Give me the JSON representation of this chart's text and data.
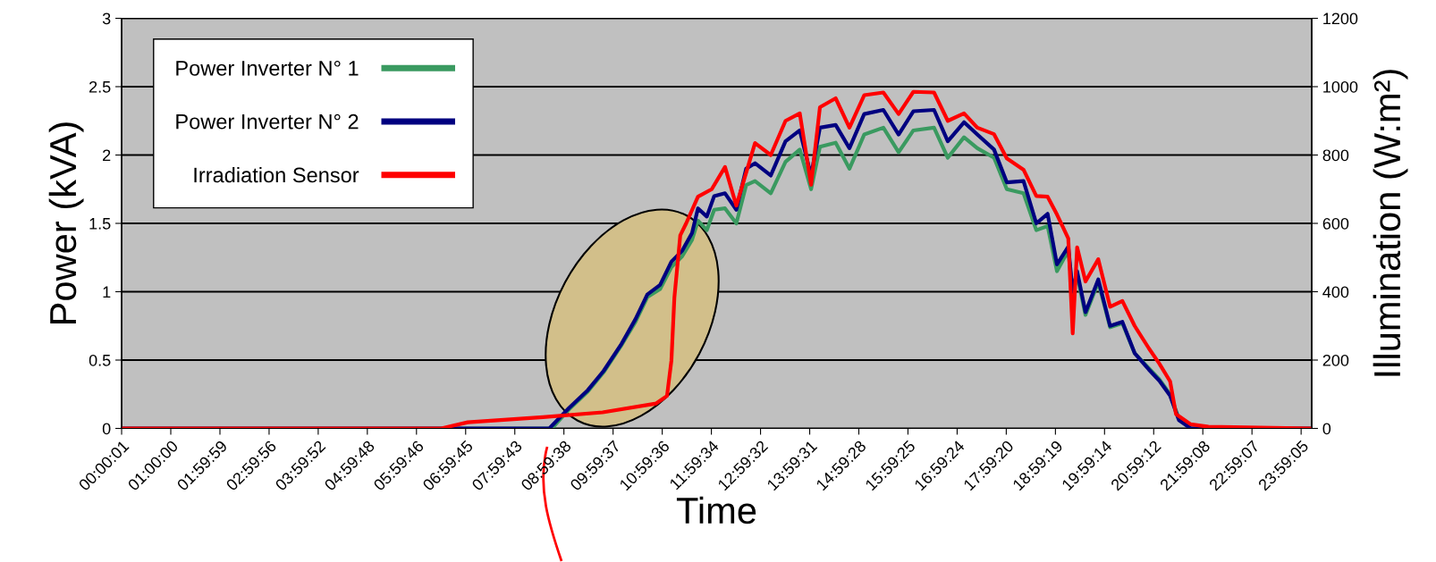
{
  "chart_data": {
    "type": "line",
    "xlabel": "Time",
    "ylabel": "Power (kVA)",
    "y2label": "Illumination (W:m²)",
    "xlim": [
      0,
      24.2
    ],
    "ylim": [
      0,
      3
    ],
    "y2lim": [
      0,
      1200
    ],
    "xticks": [
      {
        "value": 0.0003,
        "label": "00:00:01"
      },
      {
        "value": 1,
        "label": "01:00:00"
      },
      {
        "value": 1.9997,
        "label": "01:59:59"
      },
      {
        "value": 2.9989,
        "label": "02:59:56"
      },
      {
        "value": 3.9978,
        "label": "03:59:52"
      },
      {
        "value": 4.9967,
        "label": "04:59:48"
      },
      {
        "value": 5.9961,
        "label": "05:59:46"
      },
      {
        "value": 6.9958,
        "label": "06:59:45"
      },
      {
        "value": 7.9953,
        "label": "07:59:43"
      },
      {
        "value": 8.9939,
        "label": "08:59:38"
      },
      {
        "value": 9.9936,
        "label": "09:59:37"
      },
      {
        "value": 10.9933,
        "label": "10:59:36"
      },
      {
        "value": 11.9928,
        "label": "11:59:34"
      },
      {
        "value": 12.9922,
        "label": "12:59:32"
      },
      {
        "value": 13.9919,
        "label": "13:59:31"
      },
      {
        "value": 14.9911,
        "label": "14:59:28"
      },
      {
        "value": 15.9903,
        "label": "15:59:25"
      },
      {
        "value": 16.99,
        "label": "16:59:24"
      },
      {
        "value": 17.9889,
        "label": "17:59:20"
      },
      {
        "value": 18.9886,
        "label": "18:59:19"
      },
      {
        "value": 19.9872,
        "label": "19:59:14"
      },
      {
        "value": 20.9867,
        "label": "20:59:12"
      },
      {
        "value": 21.9856,
        "label": "21:59:08"
      },
      {
        "value": 22.9853,
        "label": "22:59:07"
      },
      {
        "value": 23.9847,
        "label": "23:59:05"
      }
    ],
    "yticks": [
      0,
      0.5,
      1,
      1.5,
      2,
      2.5,
      3
    ],
    "y2ticks": [
      0,
      200,
      400,
      600,
      800,
      1000,
      1200
    ],
    "grid": "y",
    "legend": "top left",
    "series": [
      {
        "name": "Power Inverter N° 1",
        "color": "#3a9a60",
        "x": [
          0,
          8.7,
          8.75,
          9.1,
          9.48,
          9.8,
          10.15,
          10.45,
          10.69,
          10.95,
          11.18,
          11.4,
          11.6,
          11.72,
          11.9,
          12.05,
          12.27,
          12.5,
          12.7,
          12.88,
          13.2,
          13.5,
          13.79,
          14.02,
          14.2,
          14.52,
          14.8,
          15.1,
          15.49,
          15.8,
          16.1,
          16.52,
          16.8,
          17.13,
          17.4,
          17.74,
          18.0,
          18.34,
          18.6,
          18.83,
          19.02,
          19.25,
          19.34,
          19.43,
          19.6,
          19.86,
          20.1,
          20.35,
          20.6,
          20.89,
          21.1,
          21.32,
          21.5,
          21.74,
          24.2
        ],
        "values": [
          0,
          0,
          0,
          0.14,
          0.27,
          0.41,
          0.6,
          0.78,
          0.96,
          1.02,
          1.18,
          1.26,
          1.38,
          1.52,
          1.45,
          1.6,
          1.61,
          1.5,
          1.78,
          1.81,
          1.72,
          1.95,
          2.04,
          1.75,
          2.06,
          2.09,
          1.9,
          2.15,
          2.2,
          2.02,
          2.18,
          2.2,
          1.98,
          2.13,
          2.05,
          1.98,
          1.75,
          1.72,
          1.45,
          1.48,
          1.15,
          1.3,
          0.98,
          1.12,
          0.83,
          1.07,
          0.74,
          0.77,
          0.55,
          0.44,
          0.36,
          0.25,
          0.07,
          0,
          0
        ]
      },
      {
        "name": "Power Inverter N° 2",
        "color": "#000080",
        "x": [
          0,
          8.7,
          8.75,
          9.1,
          9.48,
          9.8,
          10.15,
          10.45,
          10.69,
          10.95,
          11.18,
          11.4,
          11.6,
          11.72,
          11.9,
          12.05,
          12.27,
          12.5,
          12.7,
          12.88,
          13.2,
          13.5,
          13.79,
          14.02,
          14.2,
          14.52,
          14.8,
          15.1,
          15.49,
          15.8,
          16.1,
          16.52,
          16.8,
          17.13,
          17.4,
          17.74,
          18.0,
          18.34,
          18.6,
          18.83,
          19.02,
          19.25,
          19.34,
          19.43,
          19.6,
          19.86,
          20.1,
          20.35,
          20.6,
          20.89,
          21.1,
          21.32,
          21.5,
          21.74,
          24.2
        ],
        "values": [
          0,
          0,
          0.02,
          0.15,
          0.28,
          0.42,
          0.61,
          0.8,
          0.98,
          1.05,
          1.22,
          1.3,
          1.43,
          1.61,
          1.55,
          1.7,
          1.72,
          1.6,
          1.9,
          1.94,
          1.85,
          2.1,
          2.18,
          1.85,
          2.2,
          2.22,
          2.05,
          2.3,
          2.33,
          2.15,
          2.32,
          2.33,
          2.1,
          2.24,
          2.15,
          2.04,
          1.8,
          1.81,
          1.5,
          1.57,
          1.2,
          1.33,
          1.0,
          1.15,
          0.85,
          1.09,
          0.75,
          0.78,
          0.55,
          0.43,
          0.35,
          0.24,
          0.06,
          0,
          0
        ]
      },
      {
        "name": "Irradiation Sensor",
        "color": "#ff0000",
        "axis": "y2",
        "x": [
          0,
          6.5,
          7.04,
          8.57,
          9.78,
          10.87,
          11.09,
          11.18,
          11.24,
          11.36,
          11.48,
          11.72,
          12.0,
          12.27,
          12.5,
          12.88,
          13.2,
          13.5,
          13.79,
          14.02,
          14.2,
          14.52,
          14.8,
          15.1,
          15.49,
          15.8,
          16.1,
          16.52,
          16.8,
          17.13,
          17.4,
          17.74,
          18.0,
          18.34,
          18.6,
          18.83,
          19.02,
          19.25,
          19.34,
          19.43,
          19.6,
          19.86,
          20.1,
          20.35,
          20.6,
          20.89,
          21.1,
          21.32,
          21.44,
          21.74,
          22.1,
          24.2
        ],
        "values": [
          0,
          0,
          18,
          33,
          47,
          73,
          95,
          199,
          382,
          565,
          600,
          678,
          700,
          765,
          652,
          835,
          800,
          900,
          922,
          713,
          940,
          966,
          880,
          975,
          983,
          920,
          985,
          983,
          900,
          922,
          880,
          861,
          790,
          757,
          680,
          678,
          626,
          556,
          278,
          530,
          430,
          495,
          356,
          373,
          300,
          234,
          190,
          138,
          42,
          12,
          5,
          0
        ]
      }
    ]
  }
}
